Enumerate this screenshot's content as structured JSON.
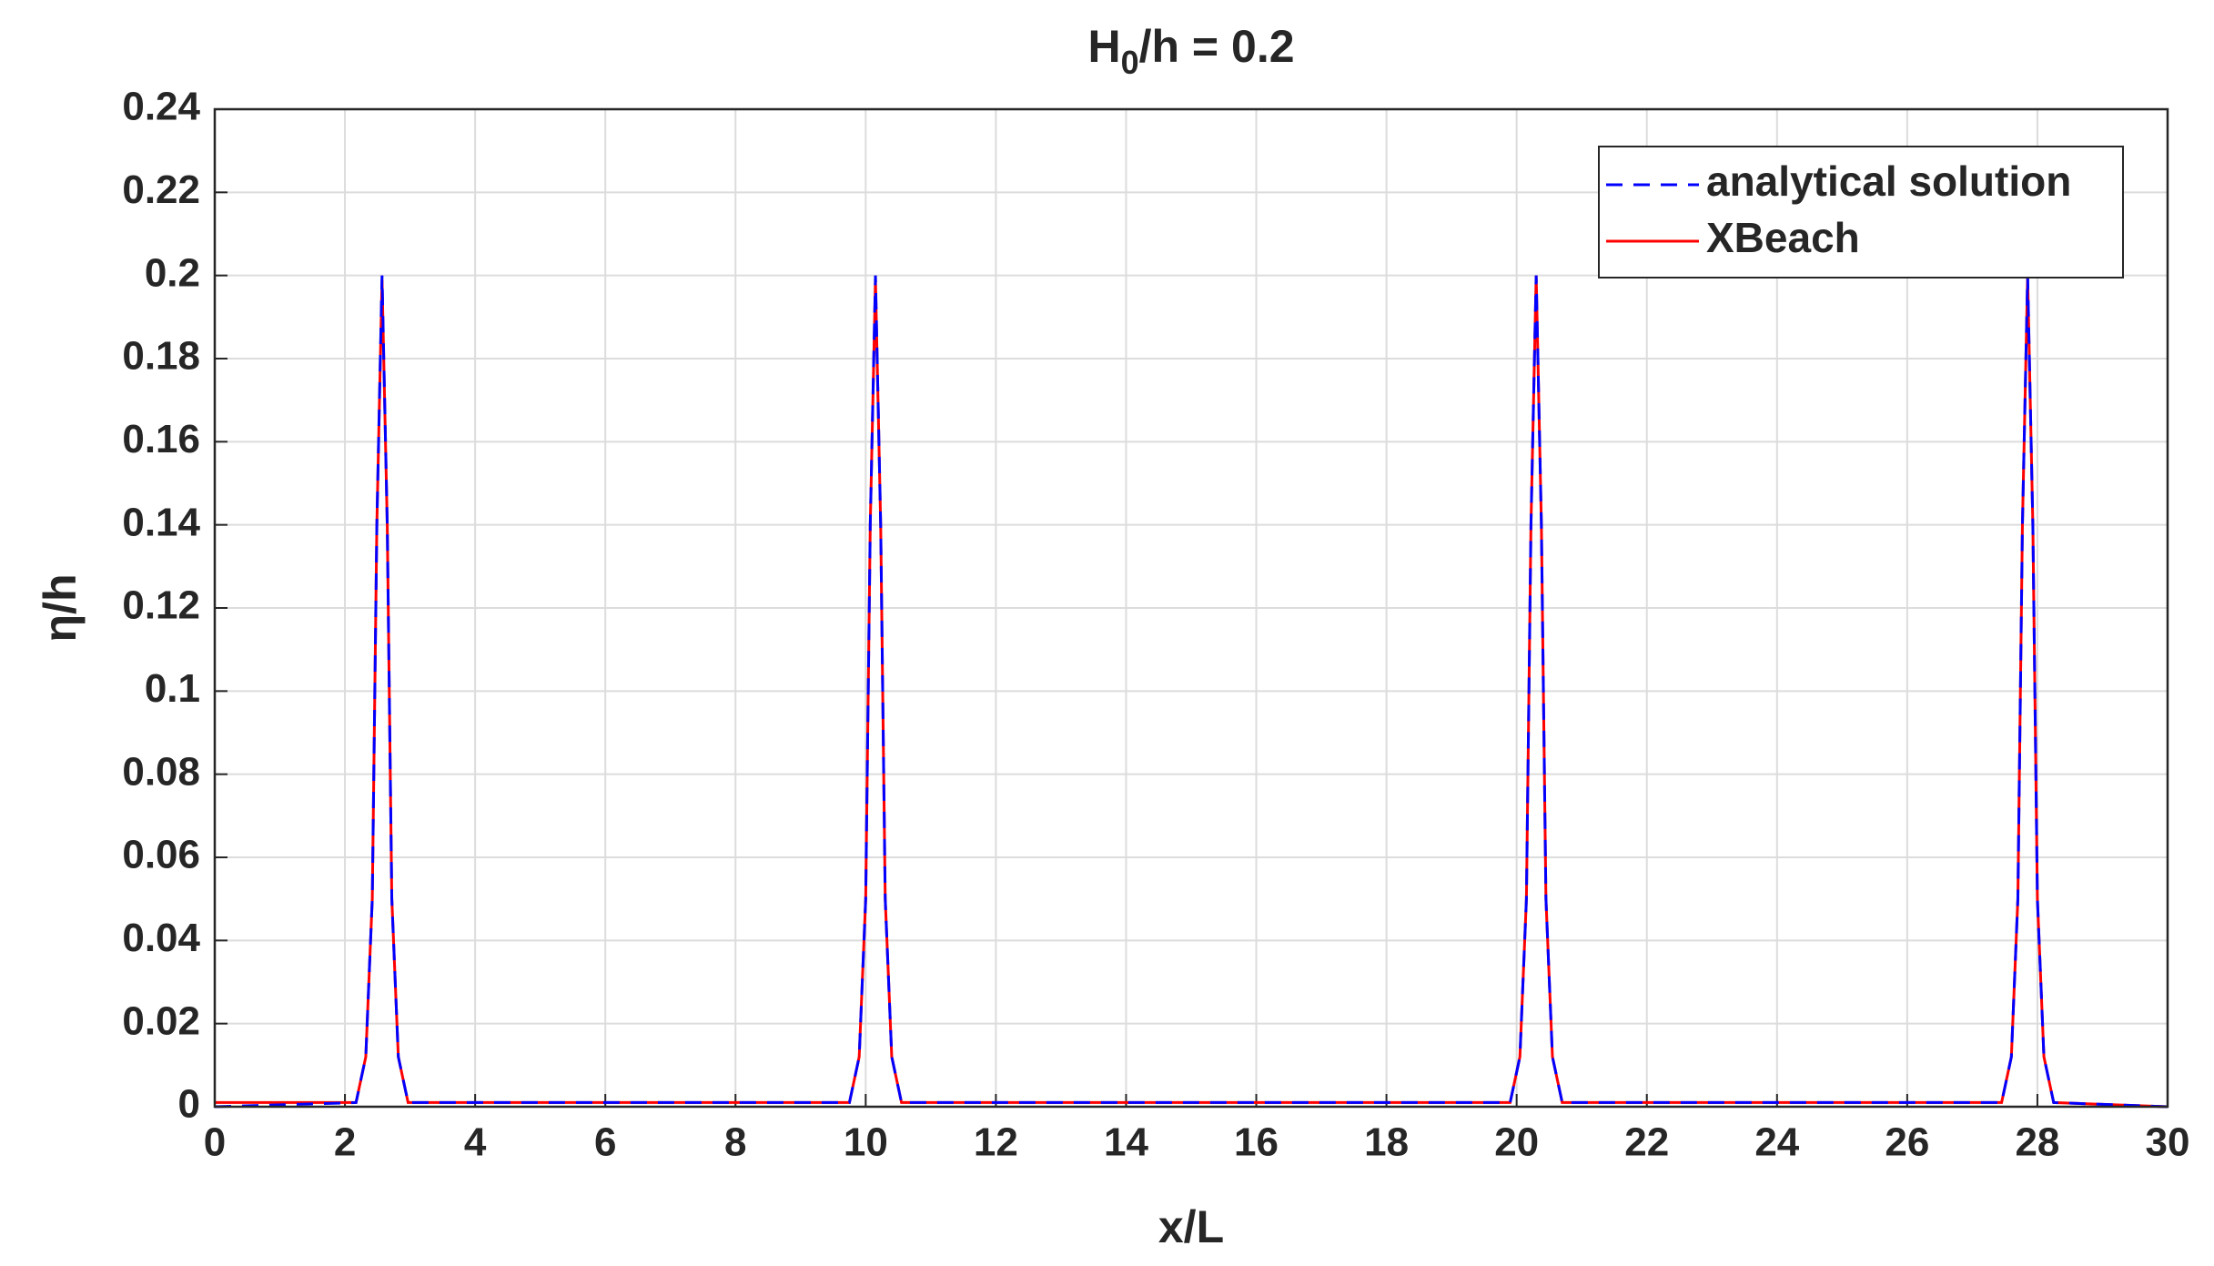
{
  "chart_data": {
    "type": "line",
    "title": {
      "base": "H",
      "subscript": "0",
      "rest": "/h = 0.2"
    },
    "x_label": "x/L",
    "y_label": "η/h",
    "x": [
      0,
      2.17,
      2.32,
      2.42,
      2.49,
      2.57,
      2.65,
      2.72,
      2.82,
      2.97,
      9.75,
      9.9,
      10.0,
      10.07,
      10.15,
      10.23,
      10.3,
      10.4,
      10.55,
      19.9,
      20.05,
      20.15,
      20.22,
      20.3,
      20.38,
      20.45,
      20.55,
      20.7,
      27.45,
      27.6,
      27.7,
      27.77,
      27.85,
      27.93,
      28.0,
      28.1,
      28.25,
      30
    ],
    "series": [
      {
        "name": "XBeach",
        "color": "#ff0000",
        "linestyle": "solid",
        "values": [
          0.001,
          0.001,
          0.012,
          0.05,
          0.14,
          0.199,
          0.14,
          0.05,
          0.012,
          0.001,
          0.001,
          0.012,
          0.05,
          0.14,
          0.199,
          0.14,
          0.05,
          0.012,
          0.001,
          0.001,
          0.012,
          0.05,
          0.14,
          0.2,
          0.14,
          0.05,
          0.012,
          0.001,
          0.001,
          0.012,
          0.05,
          0.14,
          0.2,
          0.14,
          0.05,
          0.012,
          0.001,
          0
        ]
      },
      {
        "name": "analytical solution",
        "color": "#0000ff",
        "linestyle": "dashed",
        "values": [
          0,
          0.001,
          0.012,
          0.05,
          0.14,
          0.2,
          0.14,
          0.05,
          0.012,
          0.001,
          0.001,
          0.012,
          0.05,
          0.14,
          0.2,
          0.14,
          0.05,
          0.012,
          0.001,
          0.001,
          0.012,
          0.05,
          0.14,
          0.2,
          0.14,
          0.05,
          0.012,
          0.001,
          0.001,
          0.012,
          0.05,
          0.14,
          0.2,
          0.14,
          0.05,
          0.012,
          0.001,
          0
        ]
      }
    ],
    "legend_order": [
      1,
      0
    ],
    "xlim": [
      0,
      30
    ],
    "xticks": [
      0,
      2,
      4,
      6,
      8,
      10,
      12,
      14,
      16,
      18,
      20,
      22,
      24,
      26,
      28,
      30
    ],
    "ylim": [
      0,
      0.24
    ],
    "yticks": [
      0,
      0.02,
      0.04,
      0.06,
      0.08,
      0.1,
      0.12,
      0.14,
      0.16,
      0.18,
      0.2,
      0.22,
      0.24
    ],
    "grid": true,
    "legend": "northeast"
  }
}
